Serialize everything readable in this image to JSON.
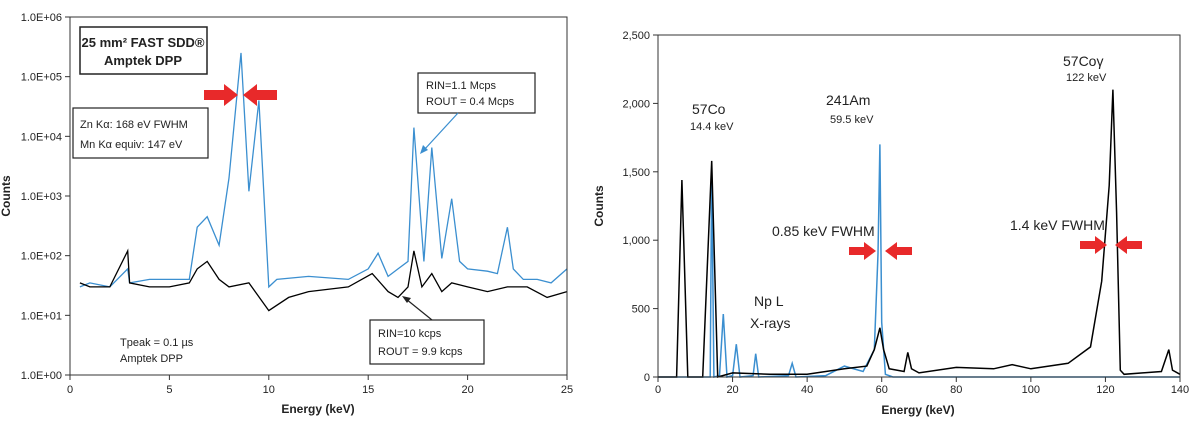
{
  "chart_data": [
    {
      "type": "line",
      "scale": "log",
      "xlabel": "Energy (keV)",
      "ylabel": "Counts",
      "xlim": [
        0,
        25
      ],
      "ylim": [
        1,
        1000000
      ],
      "x_ticks": [
        "0",
        "5",
        "10",
        "15",
        "20",
        "25"
      ],
      "y_ticks": [
        "1.0E+00",
        "1.0E+01",
        "1.0E+02",
        "1.0E+03",
        "1.0E+04",
        "1.0E+05",
        "1.0E+06"
      ],
      "grid": false,
      "colors": {
        "blue": "#3b8fd0",
        "black": "#000000",
        "arrow": "#e8292a"
      },
      "series": [
        {
          "color": "#3b8fd0",
          "x": [
            0.5,
            1,
            2,
            2.9,
            3,
            4,
            5,
            6,
            6.4,
            6.9,
            7.5,
            8,
            8.6,
            9,
            9.5,
            10,
            10.4,
            12,
            14,
            15,
            15.5,
            16,
            16.5,
            17,
            17.3,
            17.8,
            18.2,
            18.7,
            19.2,
            19.6,
            20,
            21,
            21.5,
            22,
            22.3,
            22.8,
            23.5,
            24.2,
            25
          ],
          "y": [
            30,
            35,
            30,
            60,
            35,
            40,
            40,
            40,
            300,
            450,
            150,
            2000,
            250000,
            1200,
            40000,
            30,
            40,
            45,
            40,
            60,
            110,
            45,
            60,
            80,
            14000,
            80,
            6500,
            90,
            900,
            80,
            60,
            55,
            50,
            300,
            60,
            40,
            40,
            35,
            60
          ]
        },
        {
          "color": "#000000",
          "x": [
            0.5,
            1,
            2,
            2.9,
            3,
            4,
            5,
            6,
            6.4,
            6.9,
            7.5,
            8,
            9,
            10,
            11,
            12,
            14,
            15.2,
            16,
            16.5,
            17,
            17.3,
            17.7,
            18.2,
            18.7,
            19.2,
            20,
            21,
            22,
            23,
            24,
            25
          ],
          "y": [
            35,
            30,
            30,
            120,
            35,
            30,
            30,
            35,
            60,
            80,
            40,
            30,
            35,
            12,
            20,
            25,
            30,
            50,
            25,
            20,
            30,
            120,
            30,
            50,
            25,
            35,
            30,
            25,
            30,
            30,
            20,
            25
          ]
        }
      ],
      "annotations": {
        "title_line1": "25 mm² FAST SDD®",
        "title_line2": "Amptek DPP",
        "fwhm_line1": "Zn Kα: 168 eV FWHM",
        "fwhm_line2": "Mn Kα equiv: 147 eV",
        "rin_high": "RIN=1.1 Mcps",
        "rout_high": "ROUT = 0.4 Mcps",
        "rin_low": "RIN=10 kcps",
        "rout_low": "ROUT = 9.9 kcps",
        "tpeak": "Tpeak = 0.1 µs",
        "dpp": "Amptek DPP"
      }
    },
    {
      "type": "line",
      "xlabel": "Energy (keV)",
      "ylabel": "Counts",
      "xlim": [
        0,
        140
      ],
      "ylim": [
        0,
        2500
      ],
      "x_ticks": [
        "0",
        "20",
        "40",
        "60",
        "80",
        "100",
        "120",
        "140"
      ],
      "y_ticks": [
        "0",
        "500",
        "1,000",
        "1,500",
        "2,000",
        "2,500"
      ],
      "grid": false,
      "series": [
        {
          "color": "#3b8fd0",
          "x": [
            0,
            14,
            14.4,
            15,
            16.5,
            17.5,
            18.5,
            20,
            21,
            22,
            25.5,
            26.2,
            27,
            35,
            36,
            37,
            45,
            50,
            55,
            58,
            59,
            59.5,
            60,
            61,
            63,
            70,
            140
          ],
          "y": [
            0,
            0,
            1500,
            0,
            10,
            460,
            0,
            10,
            240,
            0,
            10,
            170,
            0,
            10,
            100,
            0,
            10,
            80,
            40,
            200,
            900,
            1700,
            400,
            20,
            0,
            0,
            0
          ]
        },
        {
          "color": "#000000",
          "x": [
            0,
            5,
            6.4,
            8,
            12,
            14.4,
            16,
            20,
            30,
            40,
            50,
            56,
            58,
            59.5,
            60.5,
            62,
            66,
            67,
            68,
            70,
            80,
            90,
            95,
            100,
            110,
            116,
            119,
            121,
            122,
            123,
            124,
            125,
            130,
            135,
            137,
            138,
            140
          ],
          "y": [
            0,
            0,
            1440,
            0,
            0,
            1580,
            0,
            30,
            20,
            20,
            60,
            80,
            200,
            360,
            200,
            60,
            40,
            180,
            60,
            30,
            70,
            60,
            90,
            60,
            100,
            220,
            700,
            1400,
            2100,
            1200,
            50,
            20,
            30,
            40,
            200,
            50,
            20
          ]
        }
      ],
      "annotations": {
        "co_peak_label": "57Co",
        "co_peak_energy": "14.4 keV",
        "am_label": "241Am",
        "am_energy": "59.5 keV",
        "co_gamma_label": "57Coγ",
        "co_gamma_energy": "122 keV",
        "np_line1": "Np L",
        "np_line2": "X-rays",
        "fwhm_am": "0.85 keV FWHM",
        "fwhm_co": "1.4 keV FWHM"
      }
    }
  ]
}
